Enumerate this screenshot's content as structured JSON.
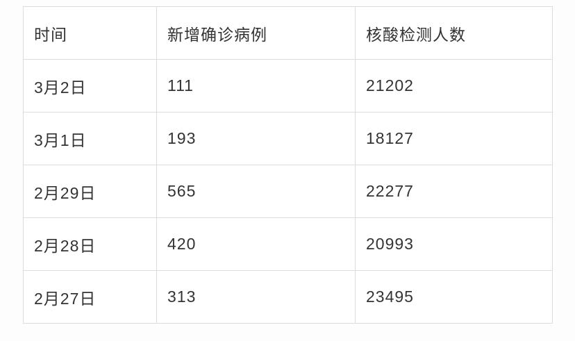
{
  "table": {
    "headers": [
      "时间",
      "新增确诊病例",
      "核酸检测人数"
    ],
    "rows": [
      [
        "3月2日",
        "111",
        "21202"
      ],
      [
        "3月1日",
        "193",
        "18127"
      ],
      [
        "2月29日",
        "565",
        "22277"
      ],
      [
        "2月28日",
        "420",
        "20993"
      ],
      [
        "2月27日",
        "313",
        "23495"
      ]
    ],
    "border_color": "#dcdcdc",
    "text_color": "#333333",
    "background": "#ffffff"
  },
  "chart_data": {
    "type": "table",
    "title": "",
    "columns": [
      "时间",
      "新增确诊病例",
      "核酸检测人数"
    ],
    "rows": [
      {
        "时间": "3月2日",
        "新增确诊病例": 111,
        "核酸检测人数": 21202
      },
      {
        "时间": "3月1日",
        "新增确诊病例": 193,
        "核酸检测人数": 18127
      },
      {
        "时间": "2月29日",
        "新增确诊病例": 565,
        "核酸检测人数": 22277
      },
      {
        "时间": "2月28日",
        "新增确诊病例": 420,
        "核酸检测人数": 20993
      },
      {
        "时间": "2月27日",
        "新增确诊病例": 313,
        "核酸检测人数": 23495
      }
    ]
  }
}
